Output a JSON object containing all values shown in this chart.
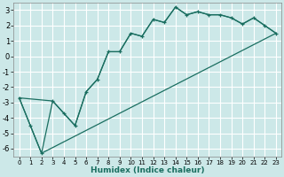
{
  "xlabel": "Humidex (Indice chaleur)",
  "background_color": "#cce8e8",
  "grid_color": "#ffffff",
  "line_color": "#1a6e60",
  "xlim": [
    -0.5,
    23.5
  ],
  "ylim": [
    -6.5,
    3.5
  ],
  "yticks": [
    -6,
    -5,
    -4,
    -3,
    -2,
    -1,
    0,
    1,
    2,
    3
  ],
  "xticks": [
    0,
    1,
    2,
    3,
    4,
    5,
    6,
    7,
    8,
    9,
    10,
    11,
    12,
    13,
    14,
    15,
    16,
    17,
    18,
    19,
    20,
    21,
    22,
    23
  ],
  "line1_x": [
    0,
    1,
    2,
    3,
    4,
    5,
    6,
    7,
    8,
    9,
    10,
    11,
    12,
    13,
    14,
    15,
    16,
    17,
    18,
    19,
    20,
    21,
    22,
    23
  ],
  "line1_y": [
    -2.7,
    -4.5,
    -6.3,
    -2.9,
    -3.7,
    -4.5,
    -2.3,
    -1.5,
    0.3,
    0.3,
    1.5,
    1.3,
    2.4,
    2.2,
    3.2,
    2.7,
    2.9,
    2.7,
    2.7,
    2.5,
    2.1,
    2.5,
    2.0,
    1.5
  ],
  "line2_x": [
    0,
    3,
    4,
    5,
    6,
    7,
    8,
    9,
    10,
    11,
    12,
    13,
    14,
    15,
    16,
    17,
    18,
    19,
    20,
    21,
    22,
    23
  ],
  "line2_y": [
    -2.7,
    -2.9,
    -3.7,
    -4.5,
    -2.3,
    -1.5,
    0.3,
    0.3,
    1.5,
    1.3,
    2.4,
    2.2,
    3.2,
    2.7,
    2.9,
    2.7,
    2.7,
    2.5,
    2.1,
    2.5,
    2.0,
    1.5
  ],
  "line3_x": [
    0,
    2,
    23
  ],
  "line3_y": [
    -2.7,
    -6.3,
    1.5
  ]
}
